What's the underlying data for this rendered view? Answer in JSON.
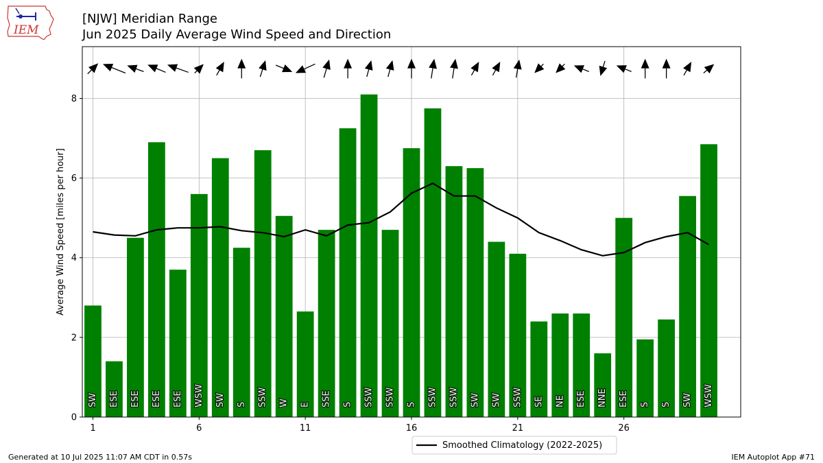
{
  "header": {
    "title": "[NJW] Meridian Range",
    "subtitle": "Jun 2025 Daily Average Wind Speed and Direction",
    "logo_text": "IEM"
  },
  "footer": {
    "left": "Generated at 10 Jul 2025 11:07 AM CDT in 0.57s",
    "right": "IEM Autoplot App #71"
  },
  "colors": {
    "bar": "#008000",
    "climo_line": "#000000",
    "grid": "#b0b0b0",
    "logo": "#cc3333"
  },
  "chart_data": {
    "type": "bar",
    "title": "[NJW] Meridian Range",
    "subtitle": "Jun 2025 Daily Average Wind Speed and Direction",
    "ylabel": "Average Wind Speed [miles per hour]",
    "xlabel": "",
    "xlim": [
      0.5,
      31.5
    ],
    "ylim": [
      0,
      9.3
    ],
    "x_ticks": [
      1,
      6,
      11,
      16,
      21,
      26
    ],
    "y_ticks": [
      0,
      2,
      4,
      6,
      8
    ],
    "grid": true,
    "legend_position": "bottom-center, below axes",
    "days": [
      1,
      2,
      3,
      4,
      5,
      6,
      7,
      8,
      9,
      10,
      11,
      12,
      13,
      14,
      15,
      16,
      17,
      18,
      19,
      20,
      21,
      22,
      23,
      24,
      25,
      26,
      27,
      28,
      29,
      30
    ],
    "speed": [
      2.8,
      1.4,
      4.5,
      6.9,
      3.7,
      5.6,
      6.5,
      4.25,
      6.7,
      5.05,
      2.65,
      4.7,
      7.25,
      8.1,
      4.7,
      6.75,
      7.75,
      6.3,
      6.25,
      4.4,
      4.1,
      2.4,
      2.6,
      2.6,
      1.6,
      5.0,
      1.95,
      2.45,
      5.55,
      6.85
    ],
    "direction_labels": [
      "SW",
      "ESE",
      "ESE",
      "ESE",
      "ESE",
      "WSW",
      "SW",
      "S",
      "SSW",
      "W",
      "E",
      "SSE",
      "S",
      "SSW",
      "SSW",
      "S",
      "SSW",
      "SSW",
      "SW",
      "SW",
      "SSW",
      "SE",
      "NE",
      "ESE",
      "NNE",
      "ESE",
      "S",
      "S",
      "SW",
      "WSW"
    ],
    "series": [
      {
        "name": "Smoothed Climatology (2022-2025)",
        "values": [
          4.65,
          4.57,
          4.55,
          4.7,
          4.75,
          4.75,
          4.78,
          4.68,
          4.63,
          4.53,
          4.7,
          4.55,
          4.82,
          4.88,
          5.15,
          5.62,
          5.87,
          5.55,
          5.55,
          5.25,
          5.0,
          4.63,
          4.43,
          4.2,
          4.05,
          4.13,
          4.38,
          4.53,
          4.63,
          4.33
        ]
      }
    ],
    "wind_vectors": {
      "u": [
        0.7,
        -1.5,
        -1.1,
        -1.2,
        -1.4,
        0.6,
        0.5,
        0,
        0.35,
        1.1,
        -1.3,
        0.35,
        0,
        0.3,
        0.3,
        0,
        0.2,
        0.2,
        0.5,
        0.5,
        0.2,
        -0.6,
        -0.6,
        -1.0,
        -0.3,
        -1.0,
        0,
        0,
        0.5,
        0.7
      ],
      "v": [
        0.7,
        0.6,
        0.4,
        0.5,
        0.5,
        0.6,
        0.9,
        1.3,
        1.1,
        -0.45,
        -0.6,
        1.2,
        1.3,
        1.1,
        1.1,
        1.3,
        1.3,
        1.3,
        0.9,
        0.9,
        1.2,
        -0.6,
        -0.6,
        0.4,
        -1.0,
        0.4,
        1.3,
        1.3,
        0.9,
        0.6
      ]
    }
  }
}
